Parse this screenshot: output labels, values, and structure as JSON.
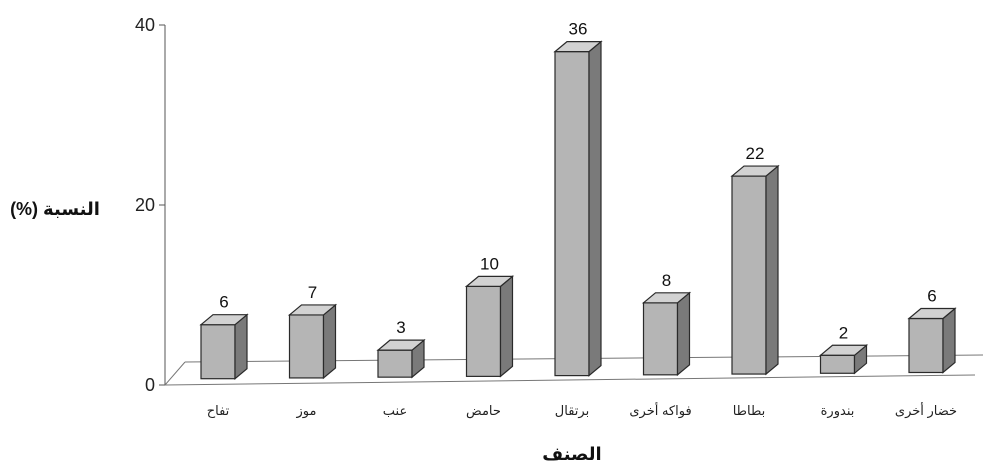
{
  "chart_data": {
    "type": "bar",
    "style": "3d",
    "title": "",
    "xlabel": "الصنف",
    "ylabel": "النسبة (%)",
    "ylim": [
      0,
      40
    ],
    "yticks": [
      0,
      20,
      40
    ],
    "grid": false,
    "legend": "none",
    "categories": [
      "تفاح",
      "موز",
      "عنب",
      "حامض",
      "برتقال",
      "فواكه أخرى",
      "بطاطا",
      "بندورة",
      "خضار أخرى"
    ],
    "values": [
      6,
      7,
      3,
      10,
      36,
      8,
      22,
      2,
      6
    ],
    "data_labels": [
      "6",
      "7",
      "3",
      "10",
      "36",
      "8",
      "22",
      "2",
      "6"
    ],
    "colors": {
      "bar_front": "#b5b5b5",
      "bar_side": "#7a7a7a",
      "bar_top": "#d2d2d2",
      "outline": "#2a2a2a"
    }
  }
}
